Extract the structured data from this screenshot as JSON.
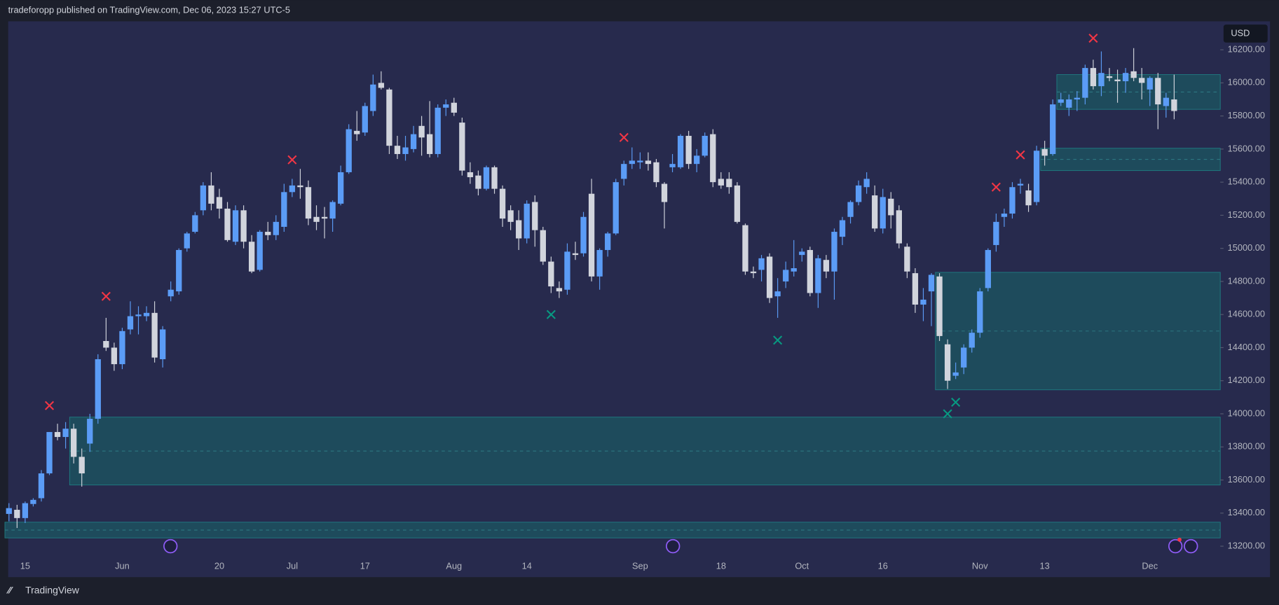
{
  "chart_data": {
    "type": "candlestick",
    "title": "tradeforopp published on TradingView.com, Dec 06, 2023 15:27 UTC-5",
    "currency": "USD",
    "footer": "TradingView",
    "categories": [
      null,
      null,
      "15",
      null,
      null,
      null,
      null,
      null,
      null,
      null,
      null,
      null,
      null,
      null,
      "Jun",
      null,
      null,
      null,
      null,
      null,
      null,
      null,
      null,
      null,
      null,
      null,
      "20",
      null,
      null,
      null,
      null,
      null,
      null,
      null,
      null,
      "Jul",
      null,
      null,
      null,
      null,
      null,
      null,
      null,
      null,
      "17",
      null,
      null,
      null,
      null,
      null,
      null,
      null,
      null,
      null,
      null,
      "Aug",
      null,
      null,
      null,
      null,
      null,
      null,
      null,
      null,
      "14",
      null,
      null,
      null,
      null,
      null,
      null,
      null,
      null,
      null,
      null,
      null,
      null,
      null,
      "Sep",
      null,
      null,
      null,
      null,
      null,
      null,
      null,
      null,
      null,
      "18",
      null,
      null,
      null,
      null,
      null,
      null,
      null,
      null,
      null,
      "Oct",
      null,
      null,
      null,
      null,
      null,
      null,
      null,
      null,
      null,
      "16",
      null,
      null,
      null,
      null,
      null,
      null,
      null,
      null,
      null,
      null,
      null,
      "Nov",
      null,
      null,
      null,
      null,
      null,
      null,
      null,
      "13",
      null,
      null,
      null,
      null,
      null,
      null,
      null,
      null,
      null,
      null,
      null,
      null,
      "Dec",
      null,
      null,
      null
    ],
    "open": [
      13395,
      13420,
      13370,
      13455,
      13490,
      13640,
      13890,
      13860,
      13910,
      13740,
      13820,
      13970,
      14440,
      14400,
      14300,
      14510,
      14590,
      14590,
      14610,
      14330,
      14710,
      14740,
      15000,
      15100,
      15230,
      15380,
      15310,
      15240,
      15040,
      15230,
      15040,
      14870,
      15100,
      15080,
      15130,
      15340,
      15380,
      15370,
      15190,
      15190,
      15180,
      15270,
      15460,
      15710,
      15700,
      15830,
      16000,
      15960,
      15620,
      15570,
      15600,
      15740,
      15690,
      15570,
      15850,
      15880,
      15760,
      15460,
      15440,
      15360,
      15490,
      15360,
      15230,
      15170,
      15060,
      15280,
      15110,
      14920,
      14760,
      14750,
      14970,
      14970,
      15330,
      14830,
      14990,
      15090,
      15420,
      15510,
      15520,
      15530,
      15520,
      15390,
      15490,
      15490,
      15680,
      15510,
      15560,
      15690,
      15420,
      15420,
      15380,
      15140,
      14860,
      14870,
      14950,
      14710,
      14800,
      14860,
      14960,
      14990,
      14730,
      14930,
      14860,
      15070,
      15190,
      15280,
      15370,
      15320,
      15120,
      15300,
      15230,
      15010,
      14850,
      14660,
      14740,
      14830,
      14420,
      14230,
      14280,
      14400,
      14490,
      14760,
      15020,
      15190,
      15210,
      15380,
      15350,
      15280,
      15600,
      15570,
      15880,
      15850,
      15900,
      15910,
      16090,
      15980,
      16040,
      16020,
      16010,
      16070,
      16030,
      15960,
      16030,
      15860,
      15900
    ],
    "high": [
      13460,
      13450,
      13470,
      13490,
      13660,
      13890,
      13940,
      13950,
      13940,
      13790,
      14000,
      14360,
      14580,
      14430,
      14520,
      14680,
      14650,
      14650,
      14680,
      14530,
      14800,
      15000,
      15100,
      15220,
      15400,
      15460,
      15360,
      15280,
      15260,
      15260,
      15080,
      15110,
      15160,
      15200,
      15390,
      15420,
      15480,
      15410,
      15260,
      15250,
      15290,
      15500,
      15750,
      15830,
      15880,
      16050,
      16070,
      15970,
      15680,
      15680,
      15740,
      15800,
      15890,
      15870,
      15900,
      15910,
      15790,
      15520,
      15470,
      15500,
      15500,
      15380,
      15260,
      15230,
      15290,
      15320,
      15130,
      14950,
      14800,
      15030,
      15040,
      15220,
      15420,
      15000,
      15100,
      15420,
      15530,
      15610,
      15580,
      15580,
      15540,
      15400,
      15570,
      15690,
      15710,
      15600,
      15700,
      15720,
      15460,
      15460,
      15400,
      15150,
      14890,
      14960,
      14970,
      14820,
      14920,
      15050,
      15000,
      15010,
      14960,
      14960,
      15120,
      15190,
      15290,
      15410,
      15460,
      15380,
      15360,
      15340,
      15260,
      15030,
      14880,
      14760,
      14850,
      14850,
      14450,
      14310,
      14420,
      14510,
      14760,
      15000,
      15210,
      15240,
      15400,
      15420,
      15390,
      15620,
      15650,
      15900,
      15940,
      15930,
      15950,
      16110,
      16140,
      16190,
      16090,
      16080,
      16090,
      16210,
      16090,
      16040,
      16060,
      15940,
      16050
    ],
    "low": [
      13350,
      13310,
      13340,
      13440,
      13470,
      13630,
      13840,
      13790,
      13700,
      13560,
      13770,
      13940,
      14380,
      14260,
      14270,
      14480,
      14480,
      14560,
      14310,
      14280,
      14680,
      14720,
      14980,
      15090,
      15200,
      15230,
      15180,
      15040,
      15020,
      15000,
      14850,
      14860,
      15050,
      15050,
      15100,
      15310,
      15300,
      15140,
      15110,
      15060,
      15100,
      15260,
      15450,
      15650,
      15680,
      15800,
      15960,
      15570,
      15540,
      15530,
      15580,
      15560,
      15550,
      15550,
      15800,
      15800,
      15440,
      15390,
      15320,
      15350,
      15330,
      15130,
      15110,
      14990,
      15030,
      15010,
      14900,
      14730,
      14700,
      14720,
      14930,
      14950,
      14800,
      14750,
      14950,
      15080,
      15380,
      15480,
      15480,
      15470,
      15370,
      15120,
      15460,
      15480,
      15480,
      15460,
      15550,
      15370,
      15360,
      15330,
      15150,
      14840,
      14820,
      14800,
      14670,
      14580,
      14760,
      14830,
      14920,
      14710,
      14640,
      14820,
      14690,
      15020,
      15150,
      15260,
      15330,
      15100,
      15090,
      15120,
      15000,
      14820,
      14610,
      14560,
      14530,
      14440,
      14150,
      14210,
      14240,
      14370,
      14460,
      14740,
      14980,
      15130,
      15180,
      15330,
      15220,
      15260,
      15500,
      15560,
      15860,
      15800,
      15830,
      15870,
      15960,
      15920,
      16010,
      15880,
      15940,
      16010,
      15900,
      15860,
      15720,
      15790,
      15780
    ],
    "close": [
      13430,
      13370,
      13460,
      13480,
      13640,
      13890,
      13860,
      13910,
      13740,
      13640,
      13970,
      14330,
      14400,
      14300,
      14500,
      14590,
      14600,
      14610,
      14340,
      14510,
      14750,
      14990,
      15090,
      15200,
      15380,
      15270,
      15240,
      15050,
      15230,
      15040,
      14860,
      15100,
      15080,
      15160,
      15340,
      15380,
      15370,
      15180,
      15160,
      15180,
      15280,
      15460,
      15720,
      15690,
      15860,
      15990,
      15970,
      15620,
      15570,
      15610,
      15690,
      15670,
      15570,
      15850,
      15870,
      15820,
      15470,
      15430,
      15360,
      15490,
      15360,
      15180,
      15160,
      15060,
      15270,
      15110,
      14920,
      14770,
      14740,
      14980,
      14960,
      15190,
      14830,
      14990,
      15090,
      15400,
      15510,
      15530,
      15530,
      15510,
      15400,
      15280,
      15510,
      15680,
      15510,
      15560,
      15680,
      15400,
      15380,
      15370,
      15160,
      14860,
      14850,
      14940,
      14700,
      14740,
      14870,
      14880,
      14980,
      14730,
      14940,
      14860,
      15100,
      15170,
      15280,
      15380,
      15420,
      15120,
      15310,
      15200,
      15030,
      14860,
      14660,
      14690,
      14840,
      14470,
      14200,
      14250,
      14400,
      14490,
      14740,
      14990,
      15160,
      15210,
      15370,
      15390,
      15260,
      15590,
      15560,
      15870,
      15900,
      15900,
      15910,
      16090,
      15980,
      16060,
      16030,
      16010,
      16060,
      16030,
      16000,
      16030,
      15870,
      15910,
      15830
    ],
    "up_color": "#5b9cf6",
    "down_color": "#d1d4dc",
    "zones": [
      {
        "start": 8,
        "top": 13980,
        "bottom": 13570
      },
      {
        "start": 0,
        "top": 13345,
        "bottom": 13250
      },
      {
        "start": 115,
        "top": 14855,
        "bottom": 14145
      },
      {
        "start": 128,
        "top": 15605,
        "bottom": 15470
      },
      {
        "start": 130,
        "top": 16050,
        "bottom": 15840
      }
    ],
    "zone_color": "#1e4b5c",
    "signals": [
      {
        "color": "#f23645",
        "index": [
          5,
          12,
          35,
          76,
          122,
          125,
          134
        ],
        "values": [
          14050,
          14710,
          15535,
          15670,
          15370,
          15565,
          16270
        ]
      },
      {
        "color": "#089981",
        "index": [
          67,
          95,
          116,
          117
        ],
        "values": [
          14600,
          14445,
          14000,
          14070
        ]
      }
    ],
    "xlim": [
      -0.1,
      149.7
    ],
    "ylim": [
      13136,
      16372
    ],
    "yticks": [
      {
        "value": 13200,
        "label": "13200.00"
      },
      {
        "value": 13400,
        "label": "13400.00"
      },
      {
        "value": 13600,
        "label": "13600.00"
      },
      {
        "value": 13800,
        "label": "13800.00"
      },
      {
        "value": 14000,
        "label": "14000.00"
      },
      {
        "value": 14200,
        "label": "14200.00"
      },
      {
        "value": 14400,
        "label": "14400.00"
      },
      {
        "value": 14600,
        "label": "14600.00"
      },
      {
        "value": 14800,
        "label": "14800.00"
      },
      {
        "value": 15000,
        "label": "15000.00"
      },
      {
        "value": 15200,
        "label": "15200.00"
      },
      {
        "value": 15400,
        "label": "15400.00"
      },
      {
        "value": 15600,
        "label": "15600.00"
      },
      {
        "value": 15800,
        "label": "15800.00"
      },
      {
        "value": 16000,
        "label": "16000.00"
      },
      {
        "value": 16200,
        "label": "16200.00"
      }
    ]
  }
}
